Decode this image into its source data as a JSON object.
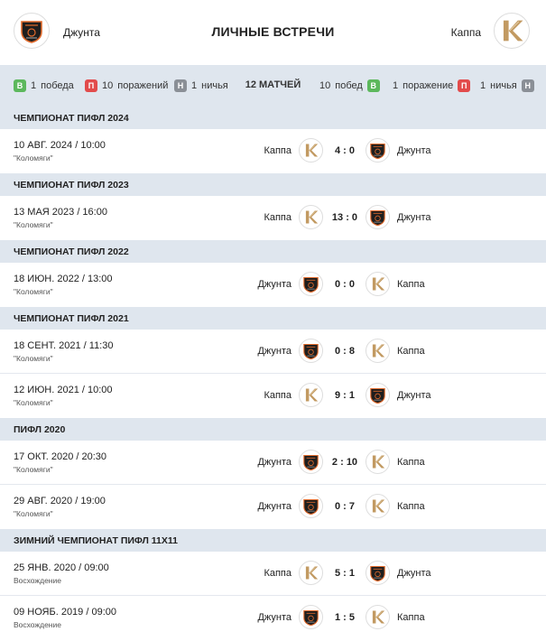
{
  "header": {
    "title": "ЛИЧНЫЕ ВСТРЕЧИ",
    "team_left": "Джунта",
    "team_right": "Каппа",
    "team_left_icon": "djunta-shield-logo",
    "team_right_icon": "kappa-k-logo"
  },
  "summary": {
    "left": [
      {
        "badge": "В",
        "value": "1",
        "label": "победа",
        "color": "#5cb85c"
      },
      {
        "badge": "П",
        "value": "10",
        "label": "поражений",
        "color": "#e24b4b"
      },
      {
        "badge": "Н",
        "value": "1",
        "label": "ничья",
        "color": "#8a8f96"
      }
    ],
    "total": "12 МАТЧЕЙ",
    "right": [
      {
        "badge": "В",
        "value": "10",
        "label": "побед",
        "color": "#5cb85c"
      },
      {
        "badge": "П",
        "value": "1",
        "label": "поражение",
        "color": "#e24b4b"
      },
      {
        "badge": "Н",
        "value": "1",
        "label": "ничья",
        "color": "#8a8f96"
      }
    ]
  },
  "sections": [
    {
      "title": "ЧЕМПИОНАТ ПИФЛ 2024",
      "matches": [
        {
          "date": "10 АВГ. 2024 / 10:00",
          "venue": "\"Коломяги\"",
          "home": "Каппа",
          "score": "4 : 0",
          "away": "Джунта"
        }
      ]
    },
    {
      "title": "ЧЕМПИОНАТ ПИФЛ 2023",
      "matches": [
        {
          "date": "13 МАЯ 2023 / 16:00",
          "venue": "\"Коломяги\"",
          "home": "Каппа",
          "score": "13 : 0",
          "away": "Джунта"
        }
      ]
    },
    {
      "title": "ЧЕМПИОНАТ ПИФЛ 2022",
      "matches": [
        {
          "date": "18 ИЮН. 2022 / 13:00",
          "venue": "\"Коломяги\"",
          "home": "Джунта",
          "score": "0 : 0",
          "away": "Каппа"
        }
      ]
    },
    {
      "title": "ЧЕМПИОНАТ ПИФЛ 2021",
      "matches": [
        {
          "date": "18 СЕНТ. 2021 / 11:30",
          "venue": "\"Коломяги\"",
          "home": "Джунта",
          "score": "0 : 8",
          "away": "Каппа"
        },
        {
          "date": "12 ИЮН. 2021 / 10:00",
          "venue": "\"Коломяги\"",
          "home": "Каппа",
          "score": "9 : 1",
          "away": "Джунта"
        }
      ]
    },
    {
      "title": "ПИФЛ 2020",
      "matches": [
        {
          "date": "17 ОКТ. 2020 / 20:30",
          "venue": "\"Коломяги\"",
          "home": "Джунта",
          "score": "2 : 10",
          "away": "Каппа"
        },
        {
          "date": "29 АВГ. 2020 / 19:00",
          "venue": "\"Коломяги\"",
          "home": "Джунта",
          "score": "0 : 7",
          "away": "Каппа"
        }
      ]
    },
    {
      "title": "ЗИМНИЙ ЧЕМПИОНАТ ПИФЛ 11Х11",
      "matches": [
        {
          "date": "25 ЯНВ. 2020 / 09:00",
          "venue": "Восхождение",
          "home": "Каппа",
          "score": "5 : 1",
          "away": "Джунта"
        },
        {
          "date": "09 НОЯБ. 2019 / 09:00",
          "venue": "Восхождение",
          "home": "Джунта",
          "score": "1 : 5",
          "away": "Каппа"
        }
      ]
    }
  ]
}
